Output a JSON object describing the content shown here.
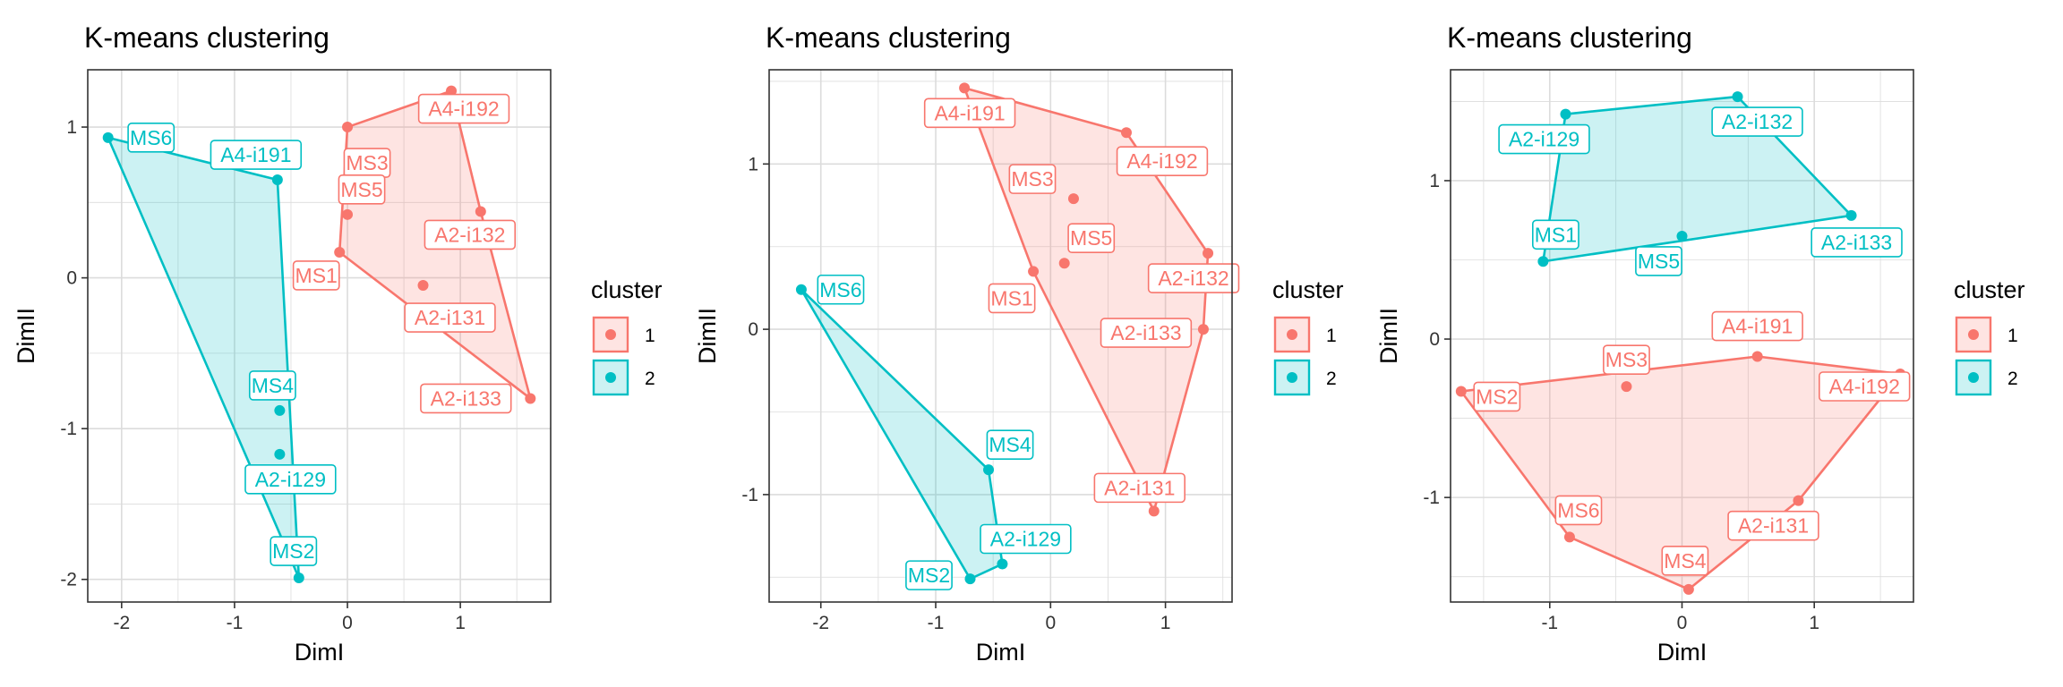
{
  "colors": {
    "cluster1": "#F8766D",
    "cluster2": "#00BFC4",
    "grid": "#DCDCDC",
    "border": "#333333"
  },
  "chart_data": [
    {
      "type": "scatter",
      "title": "K-means clustering",
      "xlabel": "DimI",
      "ylabel": "DimII",
      "xlim": [
        -2.3,
        1.8
      ],
      "ylim": [
        -2.15,
        1.38
      ],
      "xticks": [
        -2,
        -1,
        0,
        1
      ],
      "yticks": [
        -2,
        -1,
        0,
        1
      ],
      "grid": true,
      "legend": {
        "title": "cluster",
        "entries": [
          "1",
          "2"
        ],
        "position": "right"
      },
      "series": [
        {
          "name": "1",
          "hull": [
            "MS3",
            "A4-i192",
            "A2-i132",
            "A2-i133",
            "MS1"
          ],
          "points": [
            {
              "label": "MS3",
              "x": 0.0,
              "y": 1.0
            },
            {
              "label": "A4-i192",
              "x": 0.92,
              "y": 1.24
            },
            {
              "label": "MS5",
              "x": 0.0,
              "y": 0.42
            },
            {
              "label": "A2-i132",
              "x": 1.18,
              "y": 0.44
            },
            {
              "label": "MS1",
              "x": -0.07,
              "y": 0.17
            },
            {
              "label": "A2-i131",
              "x": 0.67,
              "y": -0.05
            },
            {
              "label": "A2-i133",
              "x": 1.62,
              "y": -0.8
            }
          ]
        },
        {
          "name": "2",
          "hull": [
            "MS6",
            "A4-i191",
            "MS2"
          ],
          "points": [
            {
              "label": "MS6",
              "x": -2.12,
              "y": 0.93
            },
            {
              "label": "A4-i191",
              "x": -0.62,
              "y": 0.65
            },
            {
              "label": "MS4",
              "x": -0.6,
              "y": -0.88
            },
            {
              "label": "A2-i129",
              "x": -0.6,
              "y": -1.17
            },
            {
              "label": "MS2",
              "x": -0.43,
              "y": -1.99
            }
          ]
        }
      ]
    },
    {
      "type": "scatter",
      "title": "K-means clustering",
      "xlabel": "DimI",
      "ylabel": "DimII",
      "xlim": [
        -2.45,
        1.58
      ],
      "ylim": [
        -1.65,
        1.57
      ],
      "xticks": [
        -2,
        -1,
        0,
        1
      ],
      "yticks": [
        -1,
        0,
        1
      ],
      "grid": true,
      "legend": {
        "title": "cluster",
        "entries": [
          "1",
          "2"
        ],
        "position": "right"
      },
      "series": [
        {
          "name": "1",
          "hull": [
            "A4-i191",
            "A4-i192",
            "A2-i132",
            "A2-i133",
            "A2-i131",
            "MS1"
          ],
          "points": [
            {
              "label": "A4-i191",
              "x": -0.75,
              "y": 1.46
            },
            {
              "label": "A4-i192",
              "x": 0.66,
              "y": 1.19
            },
            {
              "label": "MS3",
              "x": 0.2,
              "y": 0.79
            },
            {
              "label": "MS5",
              "x": 0.12,
              "y": 0.4
            },
            {
              "label": "MS1",
              "x": -0.15,
              "y": 0.35
            },
            {
              "label": "A2-i132",
              "x": 1.37,
              "y": 0.46
            },
            {
              "label": "A2-i133",
              "x": 1.33,
              "y": 0.0
            },
            {
              "label": "A2-i131",
              "x": 0.9,
              "y": -1.1
            }
          ]
        },
        {
          "name": "2",
          "hull": [
            "MS6",
            "MS4",
            "A2-i129",
            "MS2"
          ],
          "points": [
            {
              "label": "MS6",
              "x": -2.17,
              "y": 0.24
            },
            {
              "label": "MS4",
              "x": -0.54,
              "y": -0.85
            },
            {
              "label": "A2-i129",
              "x": -0.42,
              "y": -1.42
            },
            {
              "label": "MS2",
              "x": -0.7,
              "y": -1.51
            }
          ]
        }
      ]
    },
    {
      "type": "scatter",
      "title": "K-means clustering",
      "xlabel": "DimI",
      "ylabel": "DimII",
      "xlim": [
        -1.75,
        1.75
      ],
      "ylim": [
        -1.66,
        1.7
      ],
      "xticks": [
        -1,
        0,
        1
      ],
      "yticks": [
        -1,
        0,
        1
      ],
      "grid": true,
      "legend": {
        "title": "cluster",
        "entries": [
          "1",
          "2"
        ],
        "position": "right"
      },
      "series": [
        {
          "name": "1",
          "hull": [
            "MS2",
            "A4-i191",
            "A4-i192",
            "A2-i131",
            "MS4",
            "MS6"
          ],
          "points": [
            {
              "label": "MS2",
              "x": -1.67,
              "y": -0.33
            },
            {
              "label": "MS3",
              "x": -0.42,
              "y": -0.3
            },
            {
              "label": "A4-i191",
              "x": 0.57,
              "y": -0.11
            },
            {
              "label": "A4-i192",
              "x": 1.65,
              "y": -0.22
            },
            {
              "label": "A2-i131",
              "x": 0.88,
              "y": -1.02
            },
            {
              "label": "MS6",
              "x": -0.85,
              "y": -1.25
            },
            {
              "label": "MS4",
              "x": 0.05,
              "y": -1.58
            }
          ]
        },
        {
          "name": "2",
          "hull": [
            "A2-i129",
            "A2-i132",
            "A2-i133",
            "MS1"
          ],
          "points": [
            {
              "label": "A2-i129",
              "x": -0.88,
              "y": 1.42
            },
            {
              "label": "A2-i132",
              "x": 0.42,
              "y": 1.53
            },
            {
              "label": "A2-i133",
              "x": 1.28,
              "y": 0.78
            },
            {
              "label": "MS1",
              "x": -1.05,
              "y": 0.49
            },
            {
              "label": "MS5",
              "x": 0.0,
              "y": 0.65
            }
          ]
        }
      ]
    }
  ]
}
